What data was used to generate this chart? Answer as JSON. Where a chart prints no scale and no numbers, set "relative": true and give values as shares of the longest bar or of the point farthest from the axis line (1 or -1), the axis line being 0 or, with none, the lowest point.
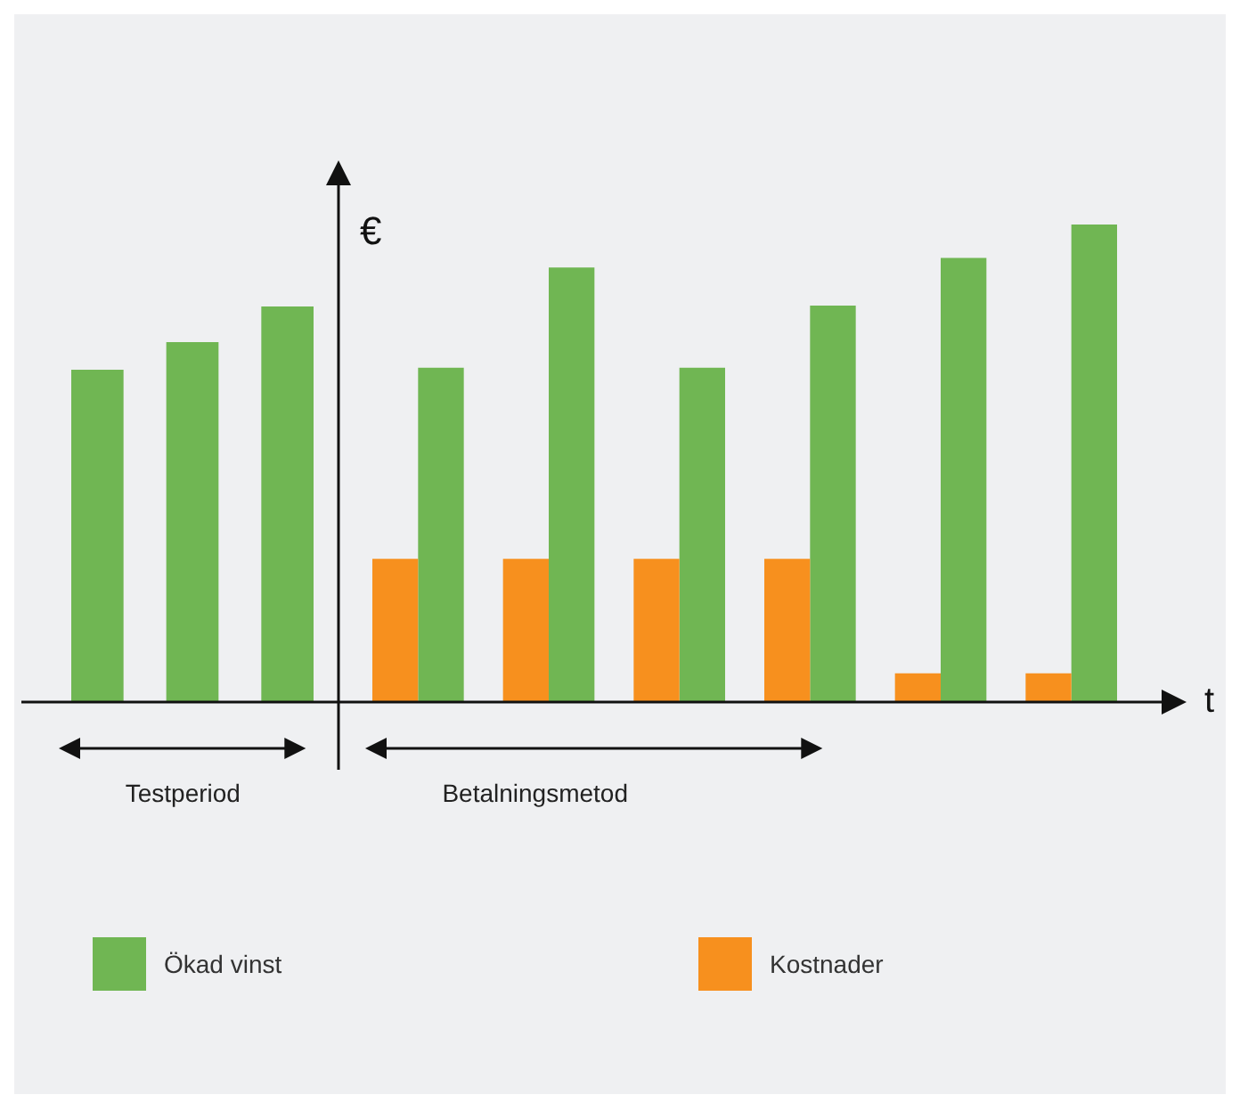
{
  "chart_data": [
    {
      "type": "bar",
      "relative": true,
      "categories": [
        null,
        null,
        null
      ],
      "series": [
        {
          "color": "#70b653",
          "values": [
            0.84,
            0.91,
            1
          ]
        }
      ],
      "annotations": [
        "Testperiod"
      ]
    },
    {
      "type": "bar",
      "relative": true,
      "xlabel": "t",
      "ylabel": "€",
      "categories": [
        null,
        null,
        null,
        null,
        null,
        null
      ],
      "series": [
        {
          "name": "Ökad vinst",
          "color": "#70b653",
          "values": [
            0.7,
            0.91,
            0.7,
            0.83,
            0.93,
            1
          ]
        },
        {
          "name": "Kostnader",
          "color": "#f7901e",
          "values": [
            0.3,
            0.3,
            0.3,
            0.3,
            0.06,
            0.06
          ]
        }
      ],
      "annotations": [
        "Betalningsmetod"
      ],
      "legend": "bottom"
    }
  ]
}
